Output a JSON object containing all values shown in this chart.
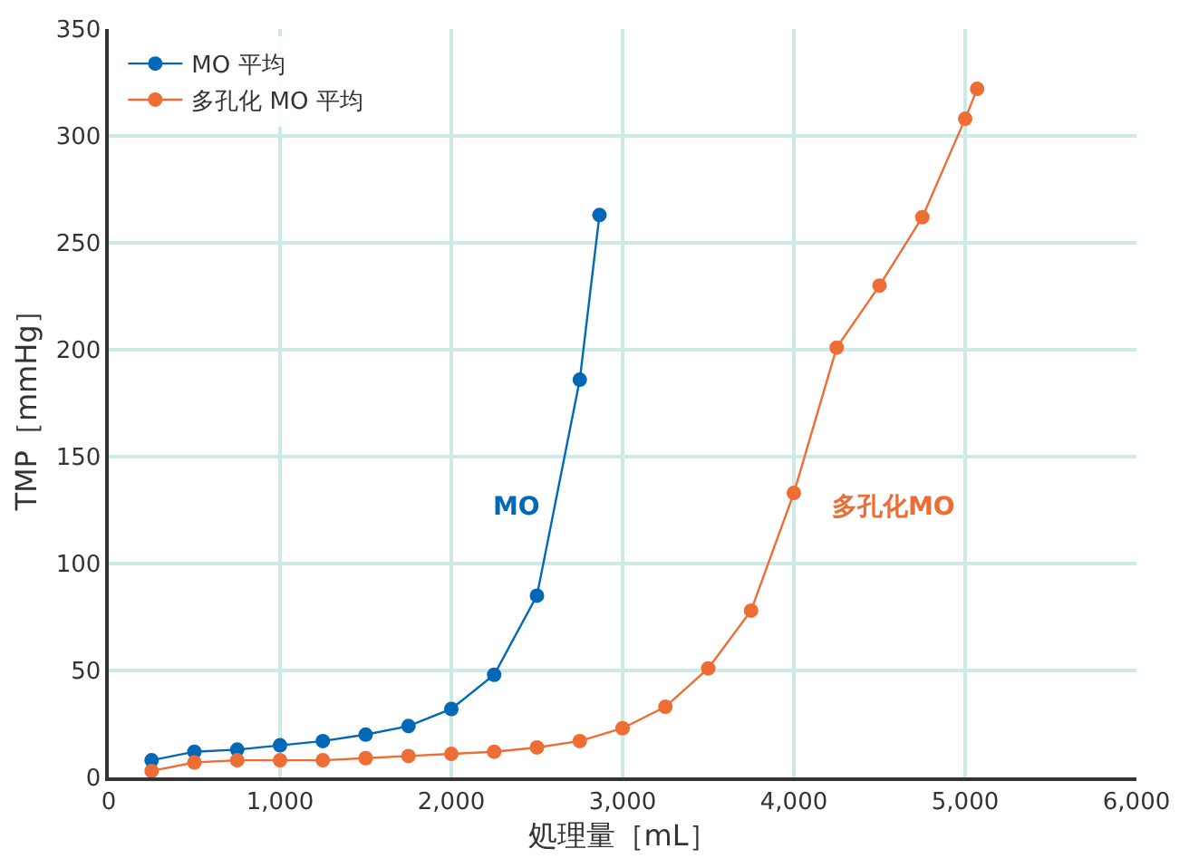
{
  "chart_data": {
    "type": "line",
    "xlabel": "処理量［mL］",
    "ylabel": "TMP［mmHg］",
    "xlim": [
      0,
      6000
    ],
    "xticks": [
      {
        "value": 0,
        "label": "0"
      },
      {
        "value": 1000,
        "label": "1,000"
      },
      {
        "value": 2000,
        "label": "2,000"
      },
      {
        "value": 3000,
        "label": "3,000"
      },
      {
        "value": 4000,
        "label": "4,000"
      },
      {
        "value": 5000,
        "label": "5,000"
      },
      {
        "value": 6000,
        "label": "6,000"
      }
    ],
    "ylim": [
      0,
      350
    ],
    "yticks": [
      0,
      50,
      100,
      150,
      200,
      250,
      300,
      350
    ],
    "grid": true,
    "legend": "top left",
    "marker": "circle",
    "line_style": "solid",
    "series": [
      {
        "name": "MO 平均",
        "color": "#0068b7",
        "x": [
          250,
          500,
          750,
          1000,
          1250,
          1500,
          1750,
          2000,
          2250,
          2500,
          2750,
          2865
        ],
        "values": [
          8,
          12,
          13,
          15,
          17,
          20,
          24,
          32,
          48,
          85,
          186,
          263
        ]
      },
      {
        "name": "多孔化 MO 平均",
        "color": "#ed6d35",
        "x": [
          250,
          500,
          750,
          1000,
          1250,
          1500,
          1750,
          2000,
          2250,
          2500,
          2750,
          3000,
          3250,
          3500,
          3750,
          4000,
          4250,
          4500,
          4750,
          5000,
          5070
        ],
        "values": [
          3,
          7,
          8,
          8,
          8,
          9,
          10,
          11,
          12,
          14,
          17,
          23,
          33,
          51,
          78,
          133,
          201,
          230,
          262,
          308,
          322
        ]
      }
    ],
    "annotations": [
      "MO",
      "多孔化MO"
    ]
  }
}
